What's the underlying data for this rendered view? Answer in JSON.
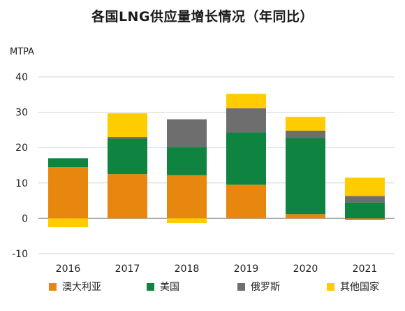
{
  "chart_data": {
    "type": "bar",
    "stacked": true,
    "title": "各国LNG供应量增长情况（年同比）",
    "ylabel": "MTPA",
    "ylim": [
      -10,
      40
    ],
    "yticks": [
      -10,
      0,
      10,
      20,
      30,
      40
    ],
    "grid": true,
    "legend_position": "bottom",
    "categories": [
      "2016",
      "2017",
      "2018",
      "2019",
      "2020",
      "2021"
    ],
    "series": [
      {
        "name": "澳大利亚",
        "color": "#E8870E",
        "values": [
          14.5,
          12.5,
          12.2,
          9.5,
          1.2,
          -0.5
        ]
      },
      {
        "name": "美国",
        "color": "#0E8440",
        "values": [
          2.5,
          10.0,
          8.0,
          14.8,
          21.5,
          4.5
        ]
      },
      {
        "name": "俄罗斯",
        "color": "#6E6E6E",
        "values": [
          0,
          0.5,
          7.8,
          6.8,
          2.1,
          1.8
        ]
      },
      {
        "name": "其他国家",
        "color": "#FFCC00",
        "values": [
          -2.5,
          6.7,
          -1.3,
          4.1,
          3.9,
          5.2
        ]
      }
    ]
  }
}
